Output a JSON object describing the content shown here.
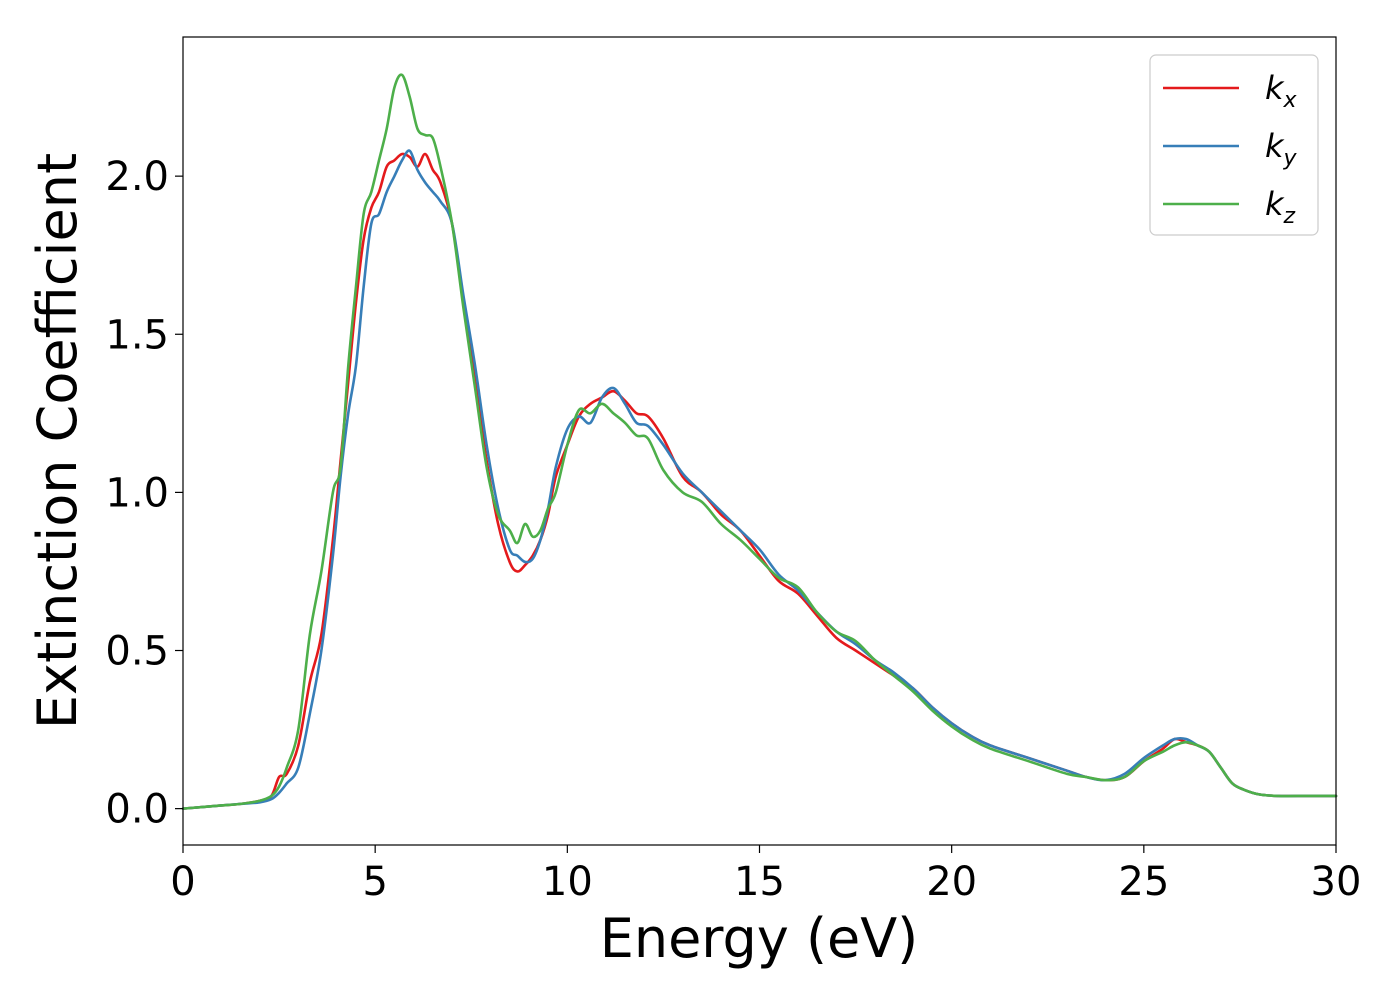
{
  "chart_data": {
    "type": "line",
    "xlabel": "Energy (eV)",
    "ylabel": "Extinction Coefficient",
    "xlim": [
      0,
      30
    ],
    "ylim": [
      -0.115,
      2.44
    ],
    "xticks": [
      "0",
      "5",
      "10",
      "15",
      "20",
      "25",
      "30"
    ],
    "yticks": [
      "0.0",
      "0.5",
      "1.0",
      "1.5",
      "2.0"
    ],
    "grid": false,
    "legend_position": "top-right",
    "series": [
      {
        "name": "k",
        "subscript": "x",
        "color": "#e41a1c",
        "x": [
          0,
          1,
          1.5,
          2,
          2.3,
          2.5,
          2.7,
          3,
          3.3,
          3.6,
          3.9,
          4.1,
          4.3,
          4.5,
          4.7,
          4.9,
          5.1,
          5.3,
          5.5,
          5.7,
          5.9,
          6.1,
          6.3,
          6.5,
          6.7,
          7,
          7.3,
          7.6,
          7.9,
          8.2,
          8.5,
          8.7,
          8.9,
          9.1,
          9.3,
          9.5,
          9.7,
          10,
          10.3,
          10.6,
          10.9,
          11.2,
          11.5,
          11.8,
          12.1,
          12.5,
          13,
          13.5,
          14,
          14.5,
          15,
          15.5,
          16,
          16.5,
          17,
          17.5,
          18,
          18.5,
          19,
          19.5,
          20,
          20.5,
          21,
          22,
          23,
          23.5,
          24,
          24.5,
          25,
          25.5,
          25.8,
          26.1,
          26.4,
          26.7,
          27,
          27.3,
          27.6,
          28,
          28.5,
          29,
          30
        ],
        "y": [
          0.0,
          0.01,
          0.015,
          0.025,
          0.04,
          0.1,
          0.11,
          0.2,
          0.4,
          0.55,
          0.85,
          1.1,
          1.35,
          1.6,
          1.8,
          1.9,
          1.95,
          2.03,
          2.05,
          2.07,
          2.06,
          2.03,
          2.07,
          2.02,
          1.98,
          1.85,
          1.6,
          1.35,
          1.1,
          0.9,
          0.78,
          0.75,
          0.77,
          0.8,
          0.85,
          0.93,
          1.05,
          1.15,
          1.24,
          1.28,
          1.3,
          1.32,
          1.29,
          1.25,
          1.24,
          1.17,
          1.05,
          1.0,
          0.93,
          0.88,
          0.8,
          0.72,
          0.68,
          0.61,
          0.54,
          0.5,
          0.46,
          0.42,
          0.38,
          0.32,
          0.27,
          0.23,
          0.2,
          0.16,
          0.12,
          0.1,
          0.09,
          0.1,
          0.15,
          0.19,
          0.22,
          0.21,
          0.2,
          0.18,
          0.13,
          0.08,
          0.06,
          0.045,
          0.04,
          0.04,
          0.04
        ]
      },
      {
        "name": "k",
        "subscript": "y",
        "color": "#377eb8",
        "x": [
          0,
          1,
          1.5,
          2,
          2.3,
          2.5,
          2.7,
          3,
          3.3,
          3.6,
          3.9,
          4.1,
          4.3,
          4.5,
          4.7,
          4.9,
          5.1,
          5.3,
          5.5,
          5.7,
          5.9,
          6.1,
          6.3,
          6.5,
          6.7,
          7,
          7.3,
          7.6,
          7.9,
          8.2,
          8.5,
          8.7,
          8.9,
          9.1,
          9.3,
          9.5,
          9.7,
          10,
          10.3,
          10.6,
          10.9,
          11.2,
          11.5,
          11.8,
          12.1,
          12.5,
          13,
          13.5,
          14,
          14.5,
          15,
          15.5,
          16,
          16.5,
          17,
          17.5,
          18,
          18.5,
          19,
          19.5,
          20,
          20.5,
          21,
          22,
          23,
          23.5,
          24,
          24.5,
          25,
          25.5,
          25.8,
          26.1,
          26.4,
          26.7,
          27,
          27.3,
          27.6,
          28,
          28.5,
          29,
          30
        ],
        "y": [
          0.0,
          0.01,
          0.015,
          0.02,
          0.03,
          0.05,
          0.08,
          0.13,
          0.3,
          0.5,
          0.8,
          1.05,
          1.25,
          1.4,
          1.65,
          1.85,
          1.88,
          1.95,
          2.0,
          2.05,
          2.08,
          2.02,
          1.98,
          1.95,
          1.92,
          1.85,
          1.62,
          1.4,
          1.15,
          0.95,
          0.82,
          0.8,
          0.78,
          0.79,
          0.85,
          0.95,
          1.08,
          1.2,
          1.24,
          1.22,
          1.3,
          1.33,
          1.28,
          1.22,
          1.21,
          1.15,
          1.06,
          1.0,
          0.94,
          0.88,
          0.82,
          0.74,
          0.69,
          0.62,
          0.56,
          0.52,
          0.47,
          0.43,
          0.38,
          0.32,
          0.27,
          0.23,
          0.2,
          0.16,
          0.12,
          0.1,
          0.09,
          0.11,
          0.16,
          0.2,
          0.22,
          0.22,
          0.2,
          0.18,
          0.13,
          0.08,
          0.06,
          0.045,
          0.04,
          0.04,
          0.04
        ]
      },
      {
        "name": "k",
        "subscript": "z",
        "color": "#4daf4a",
        "x": [
          0,
          1,
          1.5,
          2,
          2.3,
          2.5,
          2.7,
          3,
          3.3,
          3.6,
          3.9,
          4.1,
          4.3,
          4.5,
          4.7,
          4.9,
          5.1,
          5.3,
          5.5,
          5.7,
          5.9,
          6.1,
          6.3,
          6.5,
          6.7,
          7,
          7.3,
          7.6,
          7.9,
          8.2,
          8.5,
          8.7,
          8.9,
          9.1,
          9.3,
          9.5,
          9.7,
          10,
          10.3,
          10.6,
          10.9,
          11.2,
          11.5,
          11.8,
          12.1,
          12.5,
          13,
          13.5,
          14,
          14.5,
          15,
          15.5,
          16,
          16.5,
          17,
          17.5,
          18,
          18.5,
          19,
          19.5,
          20,
          20.5,
          21,
          22,
          23,
          23.5,
          24,
          24.5,
          25,
          25.5,
          25.8,
          26.1,
          26.4,
          26.7,
          27,
          27.3,
          27.6,
          28,
          28.5,
          29,
          30
        ],
        "y": [
          0.0,
          0.01,
          0.015,
          0.025,
          0.04,
          0.07,
          0.13,
          0.25,
          0.55,
          0.75,
          1.0,
          1.08,
          1.4,
          1.65,
          1.88,
          1.95,
          2.05,
          2.15,
          2.28,
          2.32,
          2.25,
          2.15,
          2.13,
          2.12,
          2.03,
          1.85,
          1.58,
          1.33,
          1.08,
          0.93,
          0.88,
          0.84,
          0.9,
          0.86,
          0.88,
          0.95,
          1.0,
          1.15,
          1.26,
          1.25,
          1.28,
          1.25,
          1.22,
          1.18,
          1.17,
          1.07,
          1.0,
          0.97,
          0.9,
          0.85,
          0.79,
          0.73,
          0.7,
          0.62,
          0.56,
          0.53,
          0.47,
          0.42,
          0.37,
          0.31,
          0.26,
          0.22,
          0.19,
          0.15,
          0.11,
          0.1,
          0.09,
          0.1,
          0.15,
          0.18,
          0.2,
          0.21,
          0.2,
          0.18,
          0.13,
          0.08,
          0.06,
          0.045,
          0.04,
          0.04,
          0.04
        ]
      }
    ]
  }
}
